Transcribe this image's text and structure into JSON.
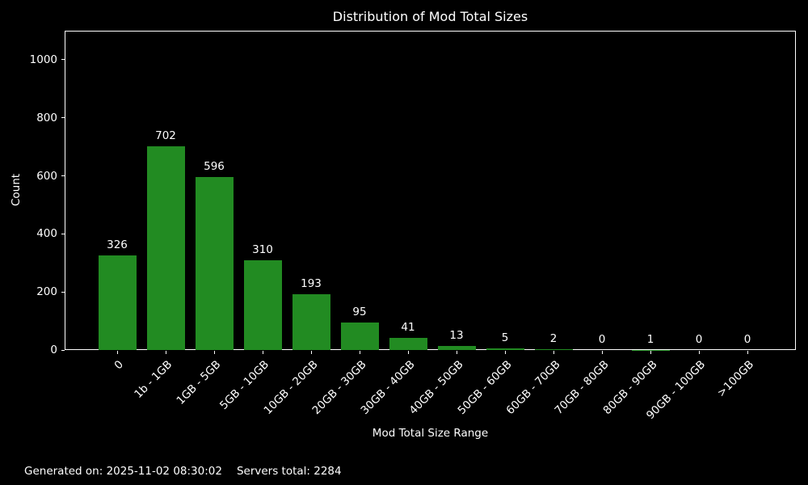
{
  "figure": {
    "footer": {
      "generated": "Generated on: 2025-11-02 08:30:02",
      "servers_total": "Servers total: 2284"
    }
  },
  "chart_data": {
    "type": "bar",
    "title": "Distribution of Mod Total Sizes",
    "categories": [
      "0",
      "1b - 1GB",
      "1GB - 5GB",
      "5GB - 10GB",
      "10GB - 20GB",
      "20GB - 30GB",
      "30GB - 40GB",
      "40GB - 50GB",
      "50GB - 60GB",
      "60GB - 70GB",
      "70GB - 80GB",
      "80GB - 90GB",
      "90GB - 100GB",
      ">100GB"
    ],
    "values": [
      326,
      702,
      596,
      310,
      193,
      95,
      41,
      13,
      5,
      2,
      0,
      1,
      0,
      0
    ],
    "xlabel": "Mod Total Size Range",
    "ylabel": "Count",
    "ylim": [
      0,
      1100
    ],
    "yticks": [
      0,
      200,
      400,
      600,
      800,
      1000
    ],
    "x_tick_rotation_deg": 45,
    "grid": false,
    "legend": null,
    "bar_value_labels": true,
    "colors": {
      "bar": "#228B22",
      "background": "#000000",
      "text": "#ffffff",
      "axis": "#ffffff"
    }
  }
}
